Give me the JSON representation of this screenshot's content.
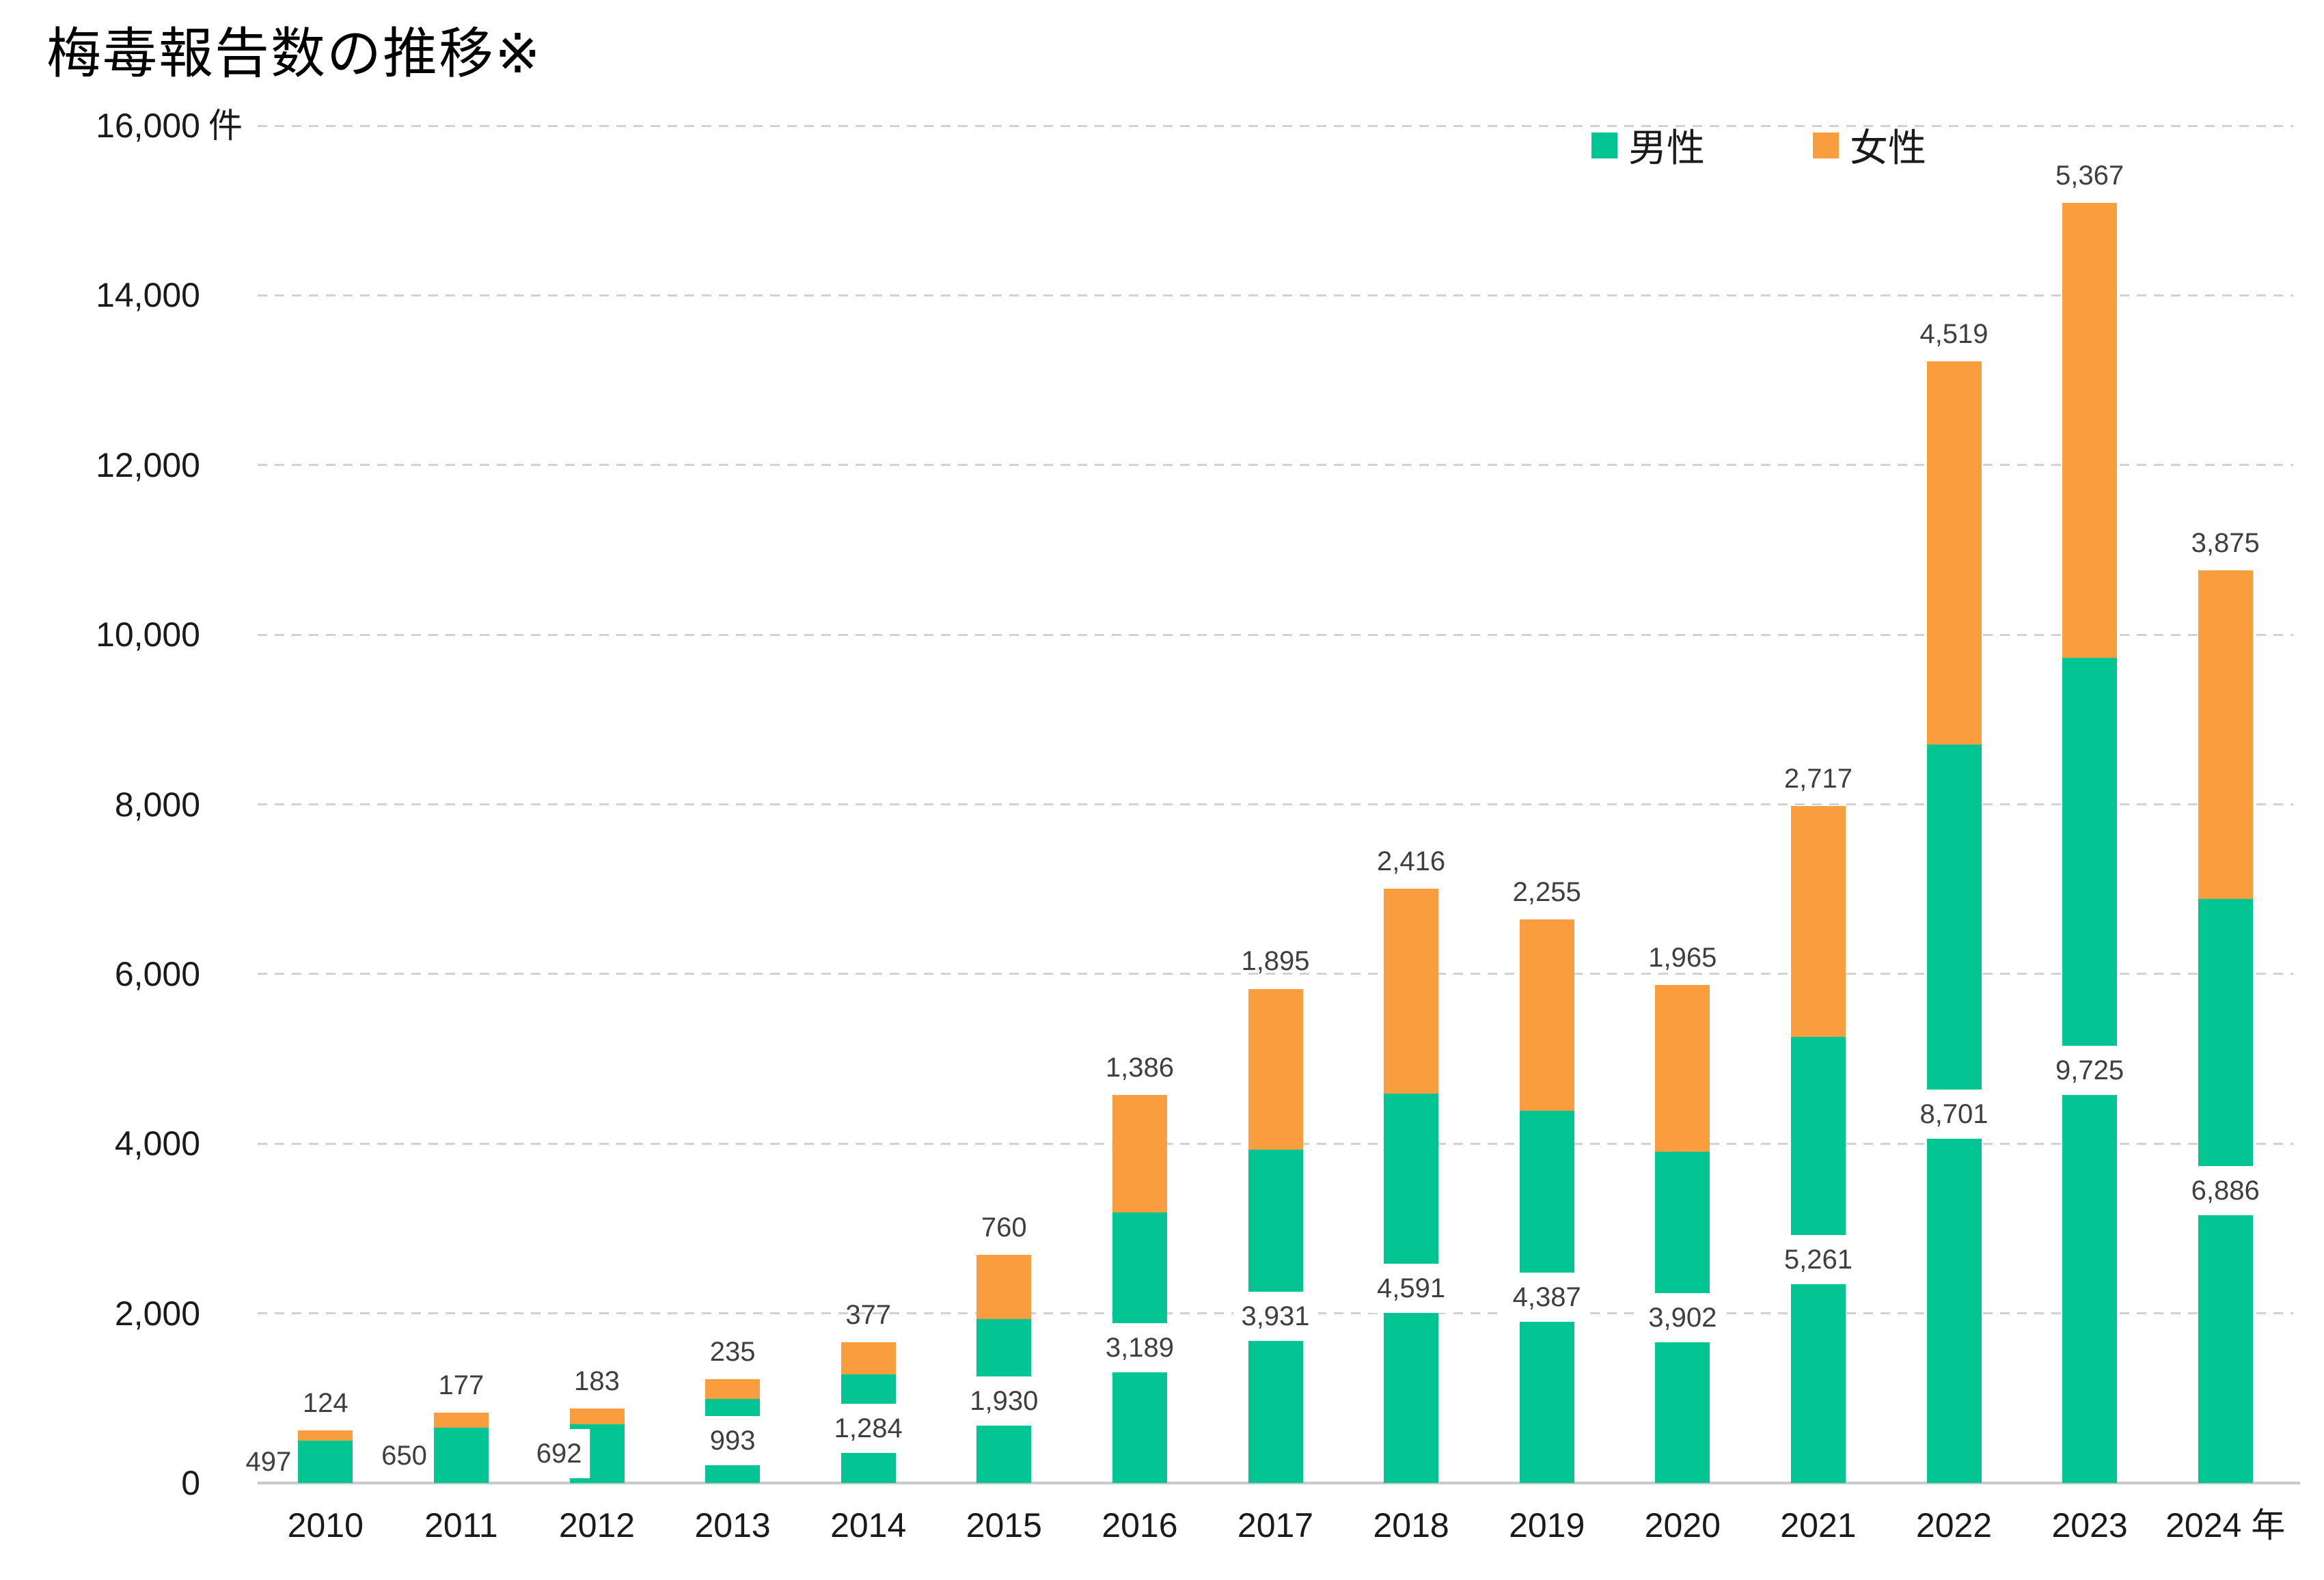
{
  "title": "梅毒報告数の推移※",
  "colors": {
    "male": "#03c593",
    "female": "#f99d3e",
    "grid": "#d2d2d2",
    "axis_line": "#c9c9c9",
    "data_label": "#3f3f3f",
    "tick_label": "#1a1a1a"
  },
  "legend": {
    "items": [
      {
        "label": "男性",
        "color_key": "male"
      },
      {
        "label": "女性",
        "color_key": "female"
      }
    ]
  },
  "y_axis": {
    "unit_suffix": "件",
    "tick_labels": [
      "0",
      "2,000",
      "4,000",
      "6,000",
      "8,000",
      "10,000",
      "12,000",
      "14,000",
      "16,000"
    ]
  },
  "x_axis": {
    "year_suffix": " 年"
  },
  "chart_data": {
    "type": "bar",
    "stacked": true,
    "title": "梅毒報告数の推移※",
    "categories": [
      "2010",
      "2011",
      "2012",
      "2013",
      "2014",
      "2015",
      "2016",
      "2017",
      "2018",
      "2019",
      "2020",
      "2021",
      "2022",
      "2023",
      "2024"
    ],
    "series": [
      {
        "name": "男性",
        "color_key": "male",
        "values": [
          497,
          650,
          692,
          993,
          1284,
          1930,
          3189,
          3931,
          4591,
          4387,
          3902,
          5261,
          8701,
          9725,
          6886
        ]
      },
      {
        "name": "女性",
        "color_key": "female",
        "values": [
          124,
          177,
          183,
          235,
          377,
          760,
          1386,
          1895,
          2416,
          2255,
          1965,
          2717,
          4519,
          5367,
          3875
        ]
      }
    ],
    "ylim": [
      0,
      16000
    ],
    "ytick_step": 2000,
    "grid": "horizontal-dashed",
    "legend_position": "top-right"
  }
}
